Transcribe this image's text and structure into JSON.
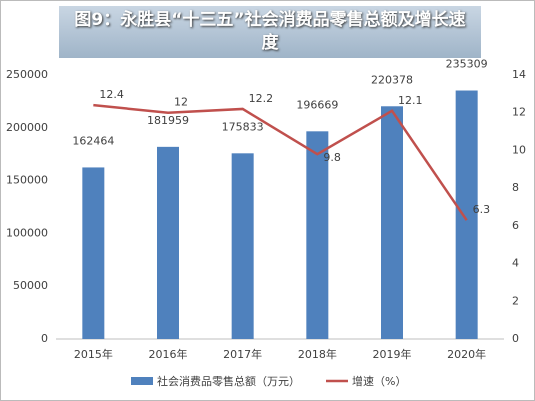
{
  "chart_data": {
    "type": "bar-line",
    "title": "图9：永胜县“十三五”社会消费品零售总额及增长速度",
    "categories": [
      "2015年",
      "2016年",
      "2017年",
      "2018年",
      "2019年",
      "2020年"
    ],
    "series": [
      {
        "name": "社会消费品零售总额（万元）",
        "type": "bar",
        "color": "#4f81bd",
        "values": [
          162464,
          181959,
          175833,
          196669,
          220378,
          235309
        ]
      },
      {
        "name": "增速（%）",
        "type": "line",
        "axis": "y2",
        "color": "#c0504d",
        "values": [
          12.4,
          12,
          12.2,
          9.8,
          12.1,
          6.3
        ]
      }
    ],
    "ylim": [
      0,
      250000
    ],
    "yticks": [
      0,
      50000,
      100000,
      150000,
      200000,
      250000
    ],
    "y2lim": [
      0,
      14
    ],
    "y2ticks": [
      0,
      2,
      4,
      6,
      8,
      10,
      12,
      14
    ],
    "grid": false,
    "legend": "bottom"
  }
}
